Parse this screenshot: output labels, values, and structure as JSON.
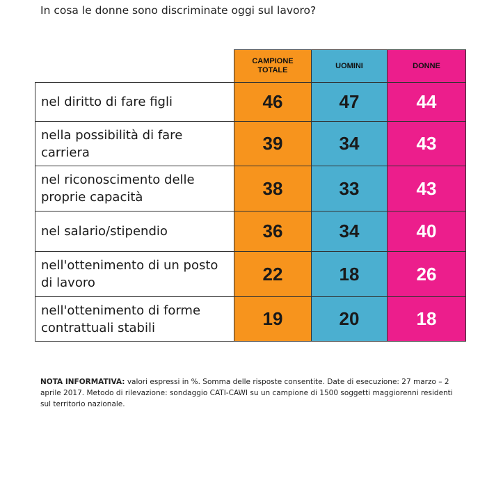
{
  "question": "In cosa le donne sono discriminate oggi sul lavoro?",
  "chart_data": {
    "type": "table",
    "columns": [
      {
        "name": "CAMPIONE TOTALE",
        "header_lines": [
          "CAMPIONE",
          "TOTALE"
        ],
        "color": "#f7941d",
        "text_color": "#1a1a1a"
      },
      {
        "name": "UOMINI",
        "header_lines": [
          "UOMINI"
        ],
        "color": "#4bafd0",
        "text_color": "#1a1a1a"
      },
      {
        "name": "DONNE",
        "header_lines": [
          "DONNE"
        ],
        "color": "#ec1e8c",
        "text_color": "#ffffff"
      }
    ],
    "rows": [
      {
        "label_lines": [
          "nel diritto di fare figli"
        ],
        "values": [
          46,
          47,
          44
        ]
      },
      {
        "label_lines": [
          "nella possibilità di fare",
          "carriera"
        ],
        "values": [
          39,
          34,
          43
        ]
      },
      {
        "label_lines": [
          "nel riconoscimento delle",
          "proprie capacità"
        ],
        "values": [
          38,
          33,
          43
        ]
      },
      {
        "label_lines": [
          "nel salario/stipendio"
        ],
        "values": [
          36,
          34,
          40
        ]
      },
      {
        "label_lines": [
          "nell'ottenimento di un posto",
          "di lavoro"
        ],
        "values": [
          22,
          18,
          26
        ]
      },
      {
        "label_lines": [
          "nell'ottenimento di forme",
          "contrattuali stabili"
        ],
        "values": [
          19,
          20,
          18
        ]
      }
    ]
  },
  "note": {
    "label": "NOTA INFORMATIVA:",
    "lines": [
      " valori espressi in %. Somma delle risposte consentite. Date di esecuzione: 27 marzo – 2",
      "aprile 2017. Metodo di rilevazione: sondaggio CATI-CAWI su un campione di 1500 soggetti maggiorenni residenti",
      "sul territorio nazionale."
    ]
  }
}
